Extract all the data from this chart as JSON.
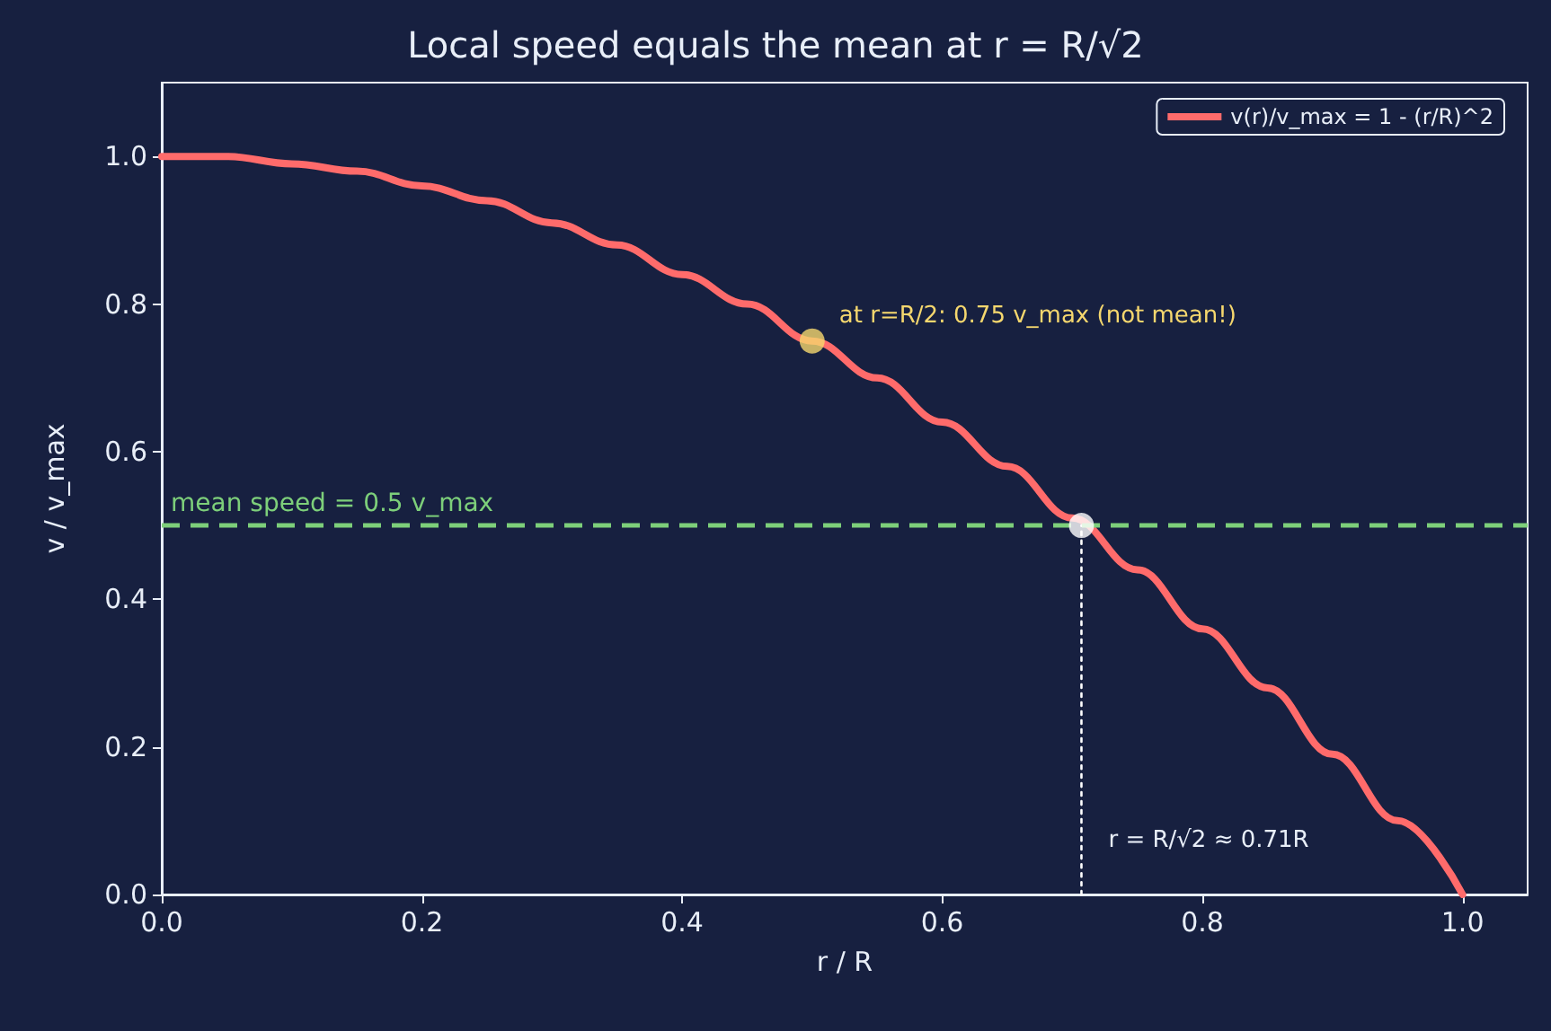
{
  "chart_data": {
    "type": "line",
    "title": "Local speed equals the mean at r = R/√2",
    "xlabel": "r / R",
    "ylabel": "v / v_max",
    "xlim": [
      0,
      1.05
    ],
    "xticks": [
      {
        "value": 0,
        "label": "0.0"
      },
      {
        "value": 0.2,
        "label": "0.2"
      },
      {
        "value": 0.4,
        "label": "0.4"
      },
      {
        "value": 0.6,
        "label": "0.6"
      },
      {
        "value": 0.8,
        "label": "0.8"
      },
      {
        "value": 1,
        "label": "1.0"
      }
    ],
    "ylim": [
      0,
      1.1
    ],
    "yticks": [
      {
        "value": 0,
        "label": "0.0"
      },
      {
        "value": 0.2,
        "label": "0.2"
      },
      {
        "value": 0.4,
        "label": "0.4"
      },
      {
        "value": 0.6,
        "label": "0.6"
      },
      {
        "value": 0.8,
        "label": "0.8"
      },
      {
        "value": 1,
        "label": "1.0"
      }
    ],
    "legend": "top right",
    "grid": false,
    "marker": "none",
    "line_style": "solid",
    "series": [
      {
        "name": "v(r)/v_max = 1 - (r/R)^2",
        "color": "#ff6b6b",
        "x": [
          0,
          0.05,
          0.1,
          0.15,
          0.2,
          0.25,
          0.3,
          0.35,
          0.4,
          0.45,
          0.5,
          0.55,
          0.6,
          0.65,
          0.7,
          0.75,
          0.8,
          0.85,
          0.9,
          0.95,
          1
        ],
        "values": [
          1,
          1,
          0.99,
          0.98,
          0.96,
          0.94,
          0.91,
          0.88,
          0.84,
          0.8,
          0.75,
          0.7,
          0.64,
          0.58,
          0.51,
          0.44,
          0.36,
          0.28,
          0.19,
          0.1,
          0
        ]
      },
      {
        "type": "line",
        "color": "#ffffff",
        "line_style": "dotted",
        "marker": "none",
        "x": [
          0.707,
          0.707
        ],
        "values": [
          0,
          0.5
        ]
      },
      {
        "type": "scatter",
        "color": "#f5d76e",
        "marker": "circle",
        "x": [
          0.5
        ],
        "values": [
          0.75
        ]
      },
      {
        "type": "scatter",
        "color": "#ffffff",
        "marker": "circle",
        "x": [
          0.707
        ],
        "values": [
          0.5
        ]
      }
    ],
    "ref_lines": [
      {
        "axis": "y",
        "value": 0.5,
        "label": "mean speed = 0.5 v_max",
        "color": "#7dcf7a",
        "line_style": "dashed"
      }
    ],
    "annotations": [
      {
        "text": "at r=R/2: 0.75 v_max (not mean!)",
        "x": 0.5,
        "y": 0.75
      },
      {
        "text": "r = R/√2 ≈ 0.71R",
        "x": 0.707,
        "y": 0
      }
    ]
  }
}
